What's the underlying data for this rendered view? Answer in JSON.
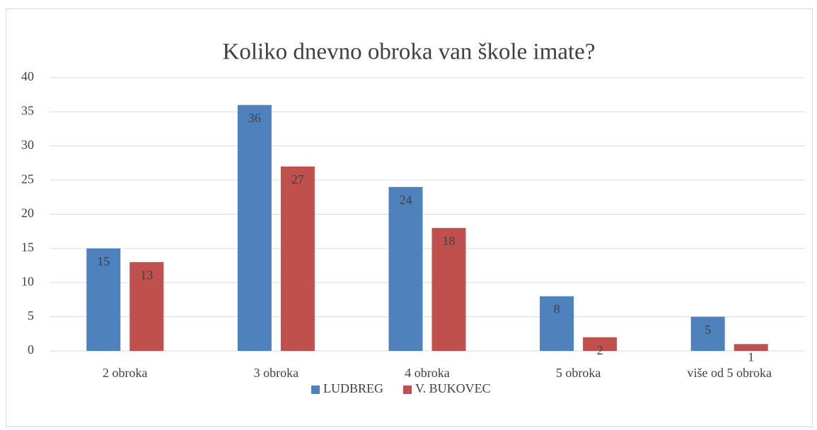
{
  "chart_data": {
    "type": "bar",
    "title": "Koliko dnevno obroka van škole imate?",
    "categories": [
      "2 obroka",
      "3 obroka",
      "4 obroka",
      "5 obroka",
      "više od 5 obroka"
    ],
    "series": [
      {
        "name": "LUDBREG",
        "color": "#4f81bd",
        "values": [
          15,
          36,
          24,
          8,
          5
        ]
      },
      {
        "name": "V. BUKOVEC",
        "color": "#c0504d",
        "values": [
          13,
          27,
          18,
          2,
          1
        ]
      }
    ],
    "ylim": [
      0,
      40
    ],
    "yticks": [
      0,
      5,
      10,
      15,
      20,
      25,
      30,
      35,
      40
    ],
    "grid": true,
    "legend": "bottom"
  }
}
